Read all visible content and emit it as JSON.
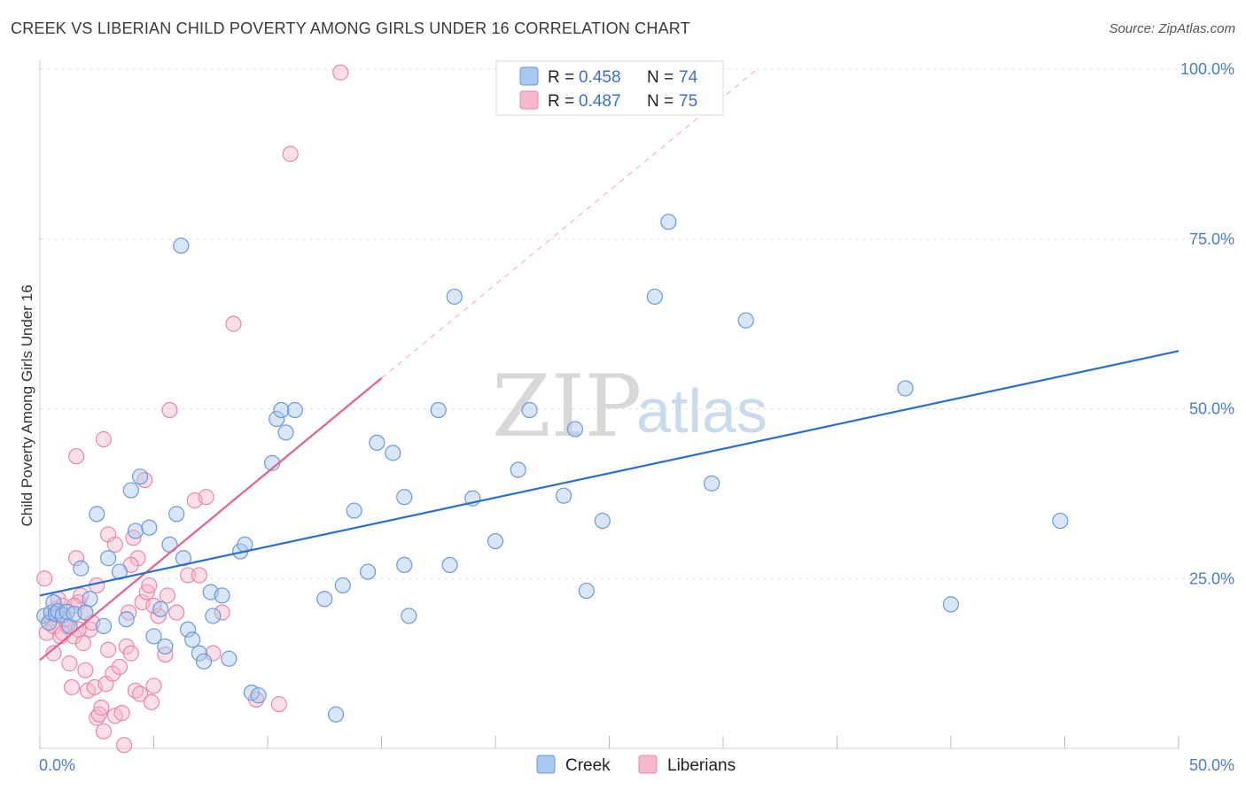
{
  "title": "CREEK VS LIBERIAN CHILD POVERTY AMONG GIRLS UNDER 16 CORRELATION CHART",
  "source": "Source: ZipAtlas.com",
  "watermark": {
    "zip": "ZIP",
    "atlas": "atlas"
  },
  "colors": {
    "creek_fill": "#a8c8f0",
    "creek_stroke": "#6a9ad8",
    "creek_line": "#2a6fd0",
    "lib_fill": "#f6b8cc",
    "lib_stroke": "#e888a8",
    "lib_line": "#e8608a",
    "grid": "#dddddd",
    "axis_text": "#4a7ccc"
  },
  "legend": {
    "rows": [
      {
        "r_label": "R =",
        "r_value": "0.458",
        "n_label": "N =",
        "n_value": "74"
      },
      {
        "r_label": "R =",
        "r_value": "0.487",
        "n_label": "N =",
        "n_value": "75"
      }
    ]
  },
  "chart_data": {
    "type": "scatter",
    "title": "CREEK VS LIBERIAN CHILD POVERTY AMONG GIRLS UNDER 16 CORRELATION CHART",
    "xlabel": "",
    "ylabel": "Child Poverty Among Girls Under 16",
    "xlim": [
      0,
      50
    ],
    "ylim": [
      0,
      100
    ],
    "x_tick_labels": [
      "0.0%",
      "50.0%"
    ],
    "y_tick_labels": [
      "25.0%",
      "50.0%",
      "75.0%",
      "100.0%"
    ],
    "y_ticks": [
      25,
      50,
      75,
      100
    ],
    "series": [
      {
        "name": "Creek",
        "R": 0.458,
        "N": 74,
        "trend": {
          "x": [
            0,
            50
          ],
          "y": [
            22.5,
            58.5
          ],
          "dashed_extension": false
        },
        "points": [
          [
            0.2,
            19.5
          ],
          [
            0.4,
            18.5
          ],
          [
            0.5,
            20
          ],
          [
            0.6,
            21.5
          ],
          [
            0.7,
            19.8
          ],
          [
            0.8,
            20.2
          ],
          [
            1.0,
            19.6
          ],
          [
            1.2,
            20.1
          ],
          [
            1.3,
            18.0
          ],
          [
            1.5,
            19.8
          ],
          [
            1.8,
            26.5
          ],
          [
            2.0,
            20.0
          ],
          [
            2.2,
            22
          ],
          [
            2.5,
            34.5
          ],
          [
            2.8,
            18
          ],
          [
            3.0,
            28
          ],
          [
            3.5,
            26
          ],
          [
            3.8,
            19
          ],
          [
            4.0,
            38
          ],
          [
            4.2,
            32
          ],
          [
            4.4,
            40
          ],
          [
            4.8,
            32.5
          ],
          [
            5.0,
            16.5
          ],
          [
            5.3,
            20.5
          ],
          [
            5.5,
            15
          ],
          [
            5.7,
            30
          ],
          [
            6.0,
            34.5
          ],
          [
            6.3,
            28
          ],
          [
            6.5,
            17.5
          ],
          [
            6.7,
            16
          ],
          [
            7.0,
            14
          ],
          [
            7.2,
            12.8
          ],
          [
            7.5,
            23
          ],
          [
            7.6,
            19.5
          ],
          [
            8.0,
            22.5
          ],
          [
            8.3,
            13.2
          ],
          [
            8.8,
            29
          ],
          [
            9.0,
            30
          ],
          [
            9.3,
            8.2
          ],
          [
            9.6,
            7.8
          ],
          [
            10.2,
            42
          ],
          [
            10.4,
            48.5
          ],
          [
            10.6,
            49.8
          ],
          [
            10.8,
            46.5
          ],
          [
            11.2,
            49.8
          ],
          [
            12.5,
            22
          ],
          [
            13.0,
            5.0
          ],
          [
            13.3,
            24
          ],
          [
            13.8,
            35
          ],
          [
            14.8,
            45
          ],
          [
            14.4,
            26
          ],
          [
            15.5,
            43.5
          ],
          [
            16.0,
            37
          ],
          [
            16.0,
            27
          ],
          [
            16.2,
            19.5
          ],
          [
            17.5,
            49.8
          ],
          [
            18.0,
            27
          ],
          [
            18.2,
            66.5
          ],
          [
            19.0,
            36.8
          ],
          [
            20.0,
            30.5
          ],
          [
            21.0,
            41
          ],
          [
            21.5,
            49.8
          ],
          [
            23.0,
            37.2
          ],
          [
            23.5,
            47
          ],
          [
            24.0,
            23.2
          ],
          [
            24.7,
            33.5
          ],
          [
            27.0,
            66.5
          ],
          [
            27.6,
            77.5
          ],
          [
            29.5,
            39
          ],
          [
            31.0,
            63
          ],
          [
            38.0,
            53
          ],
          [
            40.0,
            21.2
          ],
          [
            44.8,
            33.5
          ],
          [
            6.2,
            74
          ]
        ]
      },
      {
        "name": "Liberians",
        "R": 0.487,
        "N": 75,
        "trend": {
          "x": [
            0,
            15
          ],
          "y": [
            13,
            54.5
          ],
          "dashed_extension": true,
          "dashed_to": {
            "x": 31.5,
            "y": 100
          }
        },
        "points": [
          [
            0.2,
            25
          ],
          [
            0.3,
            17
          ],
          [
            0.4,
            18.5
          ],
          [
            0.5,
            19.2
          ],
          [
            0.6,
            18
          ],
          [
            0.7,
            20.5
          ],
          [
            0.8,
            22
          ],
          [
            0.9,
            16.5
          ],
          [
            1.0,
            21
          ],
          [
            1.1,
            19
          ],
          [
            1.2,
            18
          ],
          [
            1.3,
            12.5
          ],
          [
            1.4,
            9
          ],
          [
            1.5,
            16.5
          ],
          [
            1.6,
            28
          ],
          [
            1.7,
            21.5
          ],
          [
            1.8,
            22.5
          ],
          [
            1.9,
            15.5
          ],
          [
            2.0,
            11.5
          ],
          [
            2.1,
            8.5
          ],
          [
            2.2,
            17.5
          ],
          [
            2.3,
            18.5
          ],
          [
            2.4,
            9
          ],
          [
            2.5,
            4.5
          ],
          [
            2.6,
            5
          ],
          [
            2.7,
            6
          ],
          [
            2.8,
            2.5
          ],
          [
            2.9,
            9.5
          ],
          [
            3.0,
            14.5
          ],
          [
            3.2,
            11
          ],
          [
            3.3,
            4.8
          ],
          [
            3.5,
            12
          ],
          [
            3.6,
            5.2
          ],
          [
            3.7,
            0.5
          ],
          [
            3.8,
            15
          ],
          [
            3.9,
            20
          ],
          [
            4.0,
            14
          ],
          [
            4.1,
            31
          ],
          [
            4.2,
            8.5
          ],
          [
            4.3,
            28
          ],
          [
            4.4,
            8
          ],
          [
            4.5,
            21.5
          ],
          [
            4.6,
            39.5
          ],
          [
            4.7,
            23
          ],
          [
            4.8,
            24
          ],
          [
            4.9,
            6.8
          ],
          [
            5.0,
            9.2
          ],
          [
            5.2,
            19.5
          ],
          [
            5.5,
            13.8
          ],
          [
            5.6,
            22.5
          ],
          [
            5.7,
            49.8
          ],
          [
            6.0,
            20
          ],
          [
            6.5,
            25.5
          ],
          [
            6.8,
            36.5
          ],
          [
            7.0,
            25.5
          ],
          [
            7.3,
            37
          ],
          [
            7.6,
            14
          ],
          [
            8.0,
            20
          ],
          [
            8.5,
            62.5
          ],
          [
            9.5,
            7.2
          ],
          [
            10.5,
            6.5
          ],
          [
            11.0,
            87.5
          ],
          [
            13.2,
            99.5
          ],
          [
            1.6,
            43
          ],
          [
            2.8,
            45.5
          ],
          [
            3.0,
            31.5
          ],
          [
            1.0,
            17
          ],
          [
            1.5,
            21
          ],
          [
            2.5,
            24
          ],
          [
            0.6,
            14
          ],
          [
            3.3,
            30
          ],
          [
            4.0,
            27
          ],
          [
            2.0,
            20
          ],
          [
            1.7,
            17.5
          ],
          [
            5.0,
            21
          ]
        ]
      }
    ]
  }
}
